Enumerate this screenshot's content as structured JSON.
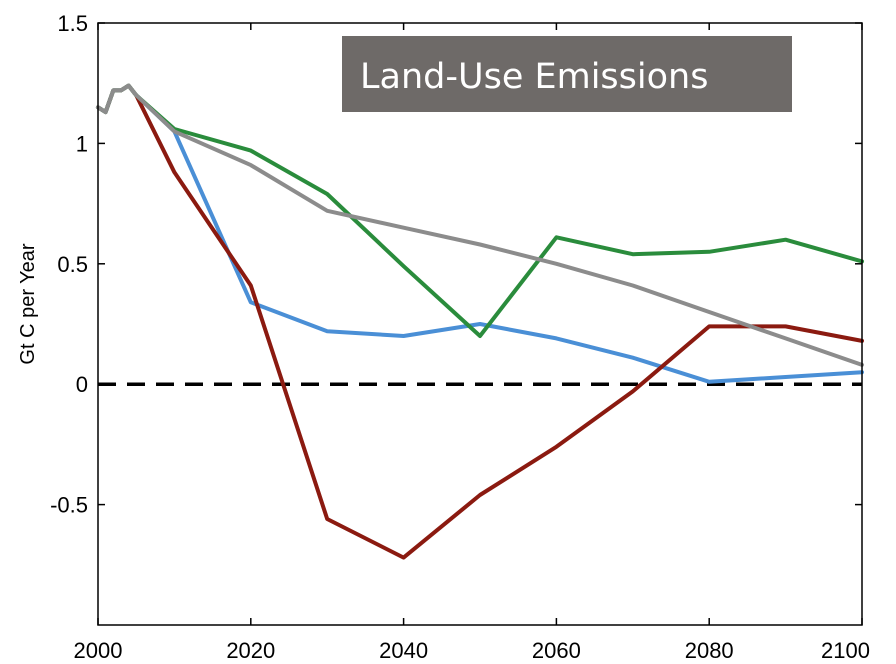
{
  "chart_data": {
    "type": "line",
    "title": "Land-Use Emissions",
    "xlabel": "",
    "ylabel": "Gt C per Year",
    "xlim": [
      2000,
      2100
    ],
    "ylim": [
      -1,
      1.5
    ],
    "xticks": [
      2000,
      2020,
      2040,
      2060,
      2080,
      2100
    ],
    "yticks": [
      -0.5,
      0,
      0.5,
      1,
      1.5
    ],
    "ytick_labels": [
      "-0.5",
      "0",
      "0.5",
      "1",
      "1.5"
    ],
    "grid": false,
    "legend": "none",
    "reference_line": {
      "y": 0,
      "style": "dashed",
      "color": "#000000"
    },
    "title_box_color": "#6e6a68",
    "series": [
      {
        "color": "#4a8fd6",
        "x": [
          2000,
          2001,
          2002,
          2003,
          2004,
          2005,
          2010,
          2020,
          2030,
          2040,
          2050,
          2060,
          2070,
          2080,
          2090,
          2100
        ],
        "y": [
          1.15,
          1.13,
          1.22,
          1.22,
          1.24,
          1.2,
          1.05,
          0.34,
          0.22,
          0.2,
          0.25,
          0.19,
          0.11,
          0.01,
          0.03,
          0.05
        ]
      },
      {
        "color": "#8b1a10",
        "x": [
          2000,
          2001,
          2002,
          2003,
          2004,
          2005,
          2010,
          2020,
          2030,
          2040,
          2050,
          2060,
          2070,
          2080,
          2090,
          2100
        ],
        "y": [
          1.15,
          1.13,
          1.22,
          1.22,
          1.24,
          1.2,
          0.88,
          0.41,
          -0.56,
          -0.72,
          -0.46,
          -0.26,
          -0.03,
          0.24,
          0.24,
          0.18
        ]
      },
      {
        "color": "#2a8c3c",
        "x": [
          2000,
          2001,
          2002,
          2003,
          2004,
          2005,
          2010,
          2020,
          2030,
          2040,
          2050,
          2060,
          2070,
          2080,
          2090,
          2100
        ],
        "y": [
          1.15,
          1.13,
          1.22,
          1.22,
          1.24,
          1.2,
          1.06,
          0.97,
          0.79,
          0.49,
          0.2,
          0.61,
          0.54,
          0.55,
          0.6,
          0.51
        ]
      },
      {
        "color": "#8c8c8c",
        "x": [
          2000,
          2001,
          2002,
          2003,
          2004,
          2005,
          2010,
          2020,
          2030,
          2040,
          2050,
          2060,
          2070,
          2080,
          2090,
          2100
        ],
        "y": [
          1.15,
          1.13,
          1.22,
          1.22,
          1.24,
          1.2,
          1.05,
          0.91,
          0.72,
          0.65,
          0.58,
          0.5,
          0.41,
          0.3,
          0.19,
          0.08
        ]
      }
    ]
  }
}
